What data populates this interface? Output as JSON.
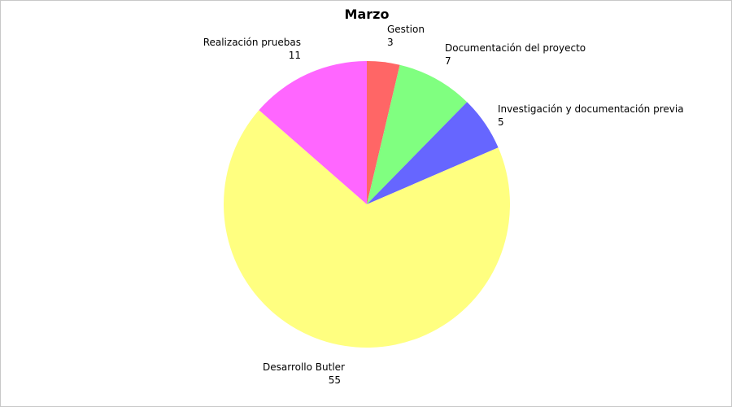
{
  "chart_data": {
    "type": "pie",
    "title": "Marzo",
    "slices": [
      {
        "label": "Gestion",
        "value": 3,
        "color": "#ff6666"
      },
      {
        "label": "Documentación del proyecto",
        "value": 7,
        "color": "#80ff80"
      },
      {
        "label": "Investigación y documentación previa",
        "value": 5,
        "color": "#6666ff"
      },
      {
        "label": "Desarrollo Butler",
        "value": 55,
        "color": "#ffff80"
      },
      {
        "label": "Realización pruebas",
        "value": 11,
        "color": "#ff66ff"
      }
    ],
    "legend": "none",
    "start_angle": "top",
    "direction": "clockwise"
  }
}
